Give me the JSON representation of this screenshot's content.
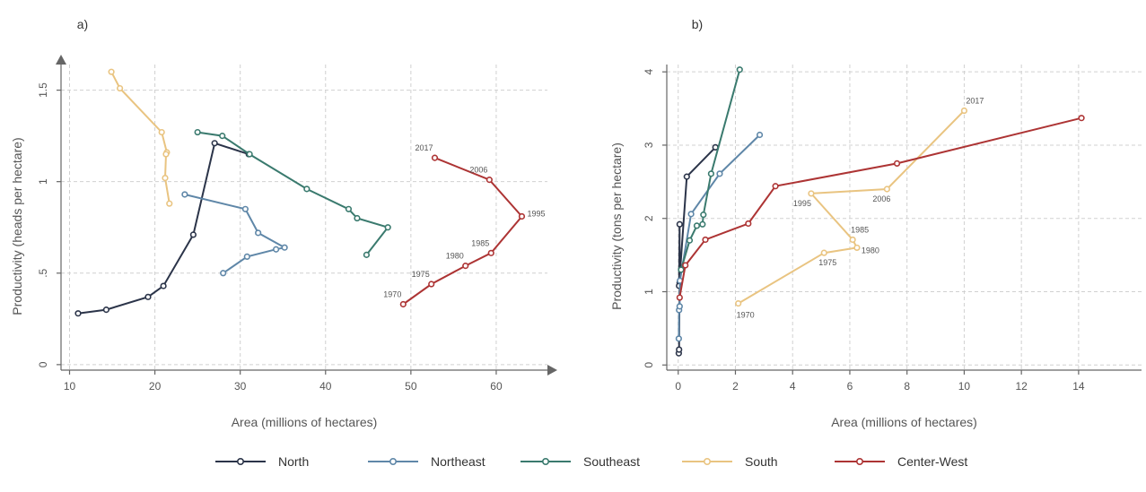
{
  "colors": {
    "North": "#2b3449",
    "Northeast": "#5f87a8",
    "Southeast": "#3a7a6e",
    "South": "#e9c481",
    "Center-West": "#ad3434"
  },
  "legend": [
    "North",
    "Northeast",
    "Southeast",
    "South",
    "Center-West"
  ],
  "chart_data": [
    {
      "type": "line",
      "panel_label": "a)",
      "xlabel": "Area (millions of hectares)",
      "ylabel": "Productivity (heads per hectare)",
      "xlim": [
        9,
        66
      ],
      "ylim": [
        -0.03,
        1.64
      ],
      "xticks": [
        10,
        20,
        30,
        40,
        50,
        60
      ],
      "xtick_labels": [
        "10",
        "20",
        "30",
        "40",
        "50",
        "60"
      ],
      "yticks": [
        0,
        0.5,
        1,
        1.5
      ],
      "ytick_labels": [
        "0",
        ".5",
        "1",
        "1.5"
      ],
      "grid": true,
      "series": [
        {
          "name": "North",
          "x": [
            11.0,
            14.3,
            19.2,
            21.0,
            24.5,
            27.0,
            31.0
          ],
          "y": [
            0.28,
            0.3,
            0.37,
            0.43,
            0.71,
            1.21,
            1.15
          ]
        },
        {
          "name": "Northeast",
          "x": [
            23.5,
            30.6,
            32.1,
            35.2,
            34.2,
            30.8,
            28.0
          ],
          "y": [
            0.93,
            0.85,
            0.72,
            0.64,
            0.63,
            0.59,
            0.5
          ]
        },
        {
          "name": "Southeast",
          "x": [
            25.0,
            27.9,
            31.1,
            37.8,
            42.7,
            43.7,
            47.3,
            44.8
          ],
          "y": [
            1.27,
            1.25,
            1.15,
            0.96,
            0.85,
            0.8,
            0.75,
            0.6
          ]
        },
        {
          "name": "South",
          "x": [
            14.9,
            15.9,
            20.8,
            21.4,
            21.3,
            21.2,
            21.7
          ],
          "y": [
            1.6,
            1.51,
            1.27,
            1.16,
            1.15,
            1.02,
            0.88
          ]
        },
        {
          "name": "Center-West",
          "x": [
            49.1,
            52.4,
            56.4,
            59.4,
            63.0,
            59.2,
            52.8
          ],
          "y": [
            0.33,
            0.44,
            0.54,
            0.61,
            0.81,
            1.01,
            1.13
          ]
        }
      ],
      "annotations": [
        {
          "text": "1970",
          "x": 49.1,
          "y": 0.33
        },
        {
          "text": "1975",
          "x": 52.4,
          "y": 0.44
        },
        {
          "text": "1980",
          "x": 56.4,
          "y": 0.54
        },
        {
          "text": "1985",
          "x": 59.4,
          "y": 0.61
        },
        {
          "text": "1995",
          "x": 63.0,
          "y": 0.81
        },
        {
          "text": "2006",
          "x": 59.2,
          "y": 1.01
        },
        {
          "text": "2017",
          "x": 52.8,
          "y": 1.13
        }
      ]
    },
    {
      "type": "line",
      "panel_label": "b)",
      "xlabel": "Area (millions of hectares)",
      "ylabel": "Productivity (tons per hectare)",
      "xlim": [
        -0.4,
        16.2
      ],
      "ylim": [
        -0.07,
        4.1
      ],
      "xticks": [
        0,
        2,
        4,
        6,
        8,
        10,
        12,
        14
      ],
      "xtick_labels": [
        "0",
        "2",
        "4",
        "6",
        "8",
        "10",
        "12",
        "14"
      ],
      "yticks": [
        0,
        1,
        2,
        3,
        4
      ],
      "ytick_labels": [
        "0",
        "1",
        "2",
        "3",
        "4"
      ],
      "grid": true,
      "series": [
        {
          "name": "North",
          "x": [
            0.02,
            0.03,
            0.05,
            0.05,
            0.03,
            0.3,
            1.3
          ],
          "y": [
            0.16,
            0.21,
            1.12,
            1.92,
            1.08,
            2.57,
            2.97
          ]
        },
        {
          "name": "Northeast",
          "x": [
            0.02,
            0.03,
            0.05,
            0.06,
            0.45,
            1.45,
            2.85
          ],
          "y": [
            0.36,
            0.75,
            0.8,
            1.15,
            2.06,
            2.61,
            3.14
          ]
        },
        {
          "name": "Southeast",
          "x": [
            0.1,
            0.4,
            0.65,
            0.85,
            0.88,
            1.15,
            2.15
          ],
          "y": [
            1.3,
            1.7,
            1.9,
            1.92,
            2.05,
            2.61,
            4.03
          ]
        },
        {
          "name": "South",
          "x": [
            2.1,
            5.1,
            6.25,
            6.1,
            4.65,
            7.3,
            10.0
          ],
          "y": [
            0.84,
            1.53,
            1.6,
            1.71,
            2.34,
            2.4,
            3.47
          ]
        },
        {
          "name": "Center-West",
          "x": [
            0.05,
            0.25,
            0.95,
            2.45,
            3.4,
            7.65,
            14.1
          ],
          "y": [
            0.92,
            1.36,
            1.71,
            1.93,
            2.44,
            2.75,
            3.37
          ]
        }
      ],
      "annotations": [
        {
          "text": "1970",
          "x": 2.1,
          "y": 0.84
        },
        {
          "text": "1975",
          "x": 5.1,
          "y": 1.53
        },
        {
          "text": "1980",
          "x": 6.25,
          "y": 1.6
        },
        {
          "text": "1985",
          "x": 6.1,
          "y": 1.71
        },
        {
          "text": "1995",
          "x": 4.65,
          "y": 2.34
        },
        {
          "text": "2006",
          "x": 7.3,
          "y": 2.4
        },
        {
          "text": "2017",
          "x": 10.0,
          "y": 3.47
        }
      ]
    }
  ]
}
